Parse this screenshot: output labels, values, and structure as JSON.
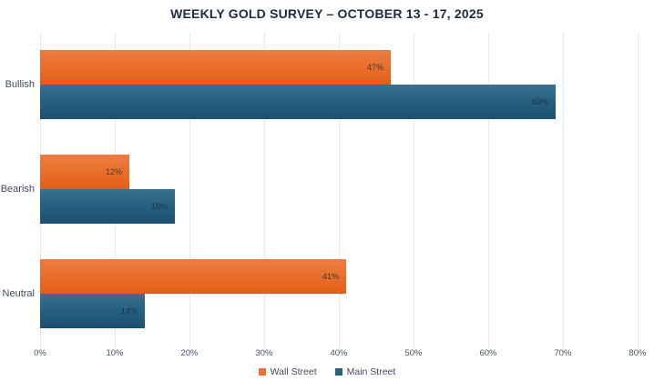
{
  "chart_data": {
    "type": "bar",
    "orientation": "horizontal",
    "title": "WEEKLY GOLD SURVEY – OCTOBER 13 - 17, 2025",
    "categories": [
      "Bullish",
      "Bearish",
      "Neutral"
    ],
    "series": [
      {
        "name": "Wall Street",
        "values": [
          47,
          12,
          41
        ],
        "color": "#ED7031"
      },
      {
        "name": "Main Street",
        "values": [
          69,
          18,
          14
        ],
        "color": "#26617F"
      }
    ],
    "value_suffix": "%",
    "xlim": [
      0,
      80
    ],
    "x_ticks": [
      "0%",
      "10%",
      "20%",
      "30%",
      "40%",
      "50%",
      "60%",
      "70%",
      "80%"
    ],
    "grid": "vertical",
    "legend_position": "bottom",
    "data_labels": "inside-end"
  },
  "colors": {
    "wall_street_gradient_top": "#EE7C42",
    "wall_street_gradient_bottom": "#E25E18",
    "main_street_gradient_top": "#39718F",
    "main_street_gradient_bottom": "#1B5073",
    "wall_street_legend": "#ED7031",
    "main_street_legend": "#26617F",
    "title_text": "#1F2B43",
    "axis_text": "#44546A",
    "category_text": "#404B5A",
    "gridline": "#E4E8EF",
    "background": "#FFFFFF"
  }
}
